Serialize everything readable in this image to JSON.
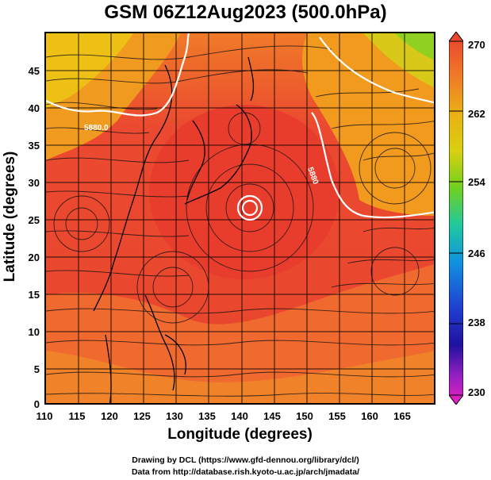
{
  "title": "GSM 06Z12Aug2023 (500.0hPa)",
  "map": {
    "xlabel": "Longitude (degrees)",
    "ylabel": "Latitude  (degrees)",
    "x_ticks": [
      "110",
      "115",
      "120",
      "125",
      "130",
      "135",
      "140",
      "145",
      "150",
      "155",
      "160",
      "165"
    ],
    "y_ticks": [
      "45",
      "40",
      "35",
      "30",
      "25",
      "20",
      "15",
      "10",
      "5",
      "0"
    ],
    "lon_range": [
      110,
      170
    ],
    "lat_range": [
      0,
      50
    ],
    "contour_labels": [
      "5880.0",
      "5880"
    ],
    "colorbar_ticks": [
      "270",
      "262",
      "254",
      "246",
      "238",
      "230"
    ],
    "colorbar_range": [
      230,
      270
    ],
    "colors": {
      "warm": "#e8402e",
      "warmer": "#f0603a",
      "orange": "#f08a1a",
      "yellow": "#e8c810",
      "green": "#80d020"
    }
  },
  "credits": {
    "line1": "Drawing by DCL (https://www.gfd-dennou.org/library/dcl/)",
    "line2": "Data from http://database.rish.kyoto-u.ac.jp/arch/jmadata/"
  }
}
